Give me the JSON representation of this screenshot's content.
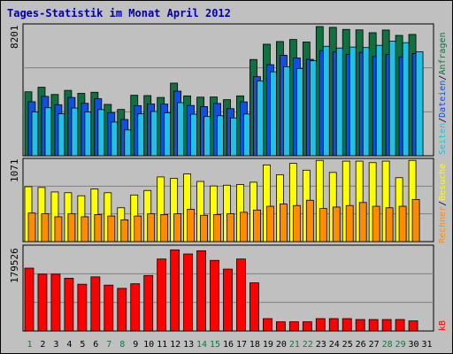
{
  "title": "Tages-Statistik im Monat April 2012",
  "colors": {
    "title": "#0000aa",
    "anfragen": "#107040",
    "dateien": "#1050e0",
    "seiten": "#20c0e8",
    "besuche": "#ffff00",
    "rechner": "#ff8c00",
    "kb": "#ff0000",
    "weekend": "#008040",
    "weekday": "#000000"
  },
  "legend": {
    "anfragen": "Anfragen",
    "dateien": "Dateien",
    "seiten": "Seiten",
    "besuche": "Besuche",
    "rechner": "Rechner",
    "kb": "kB",
    "sep": "/"
  },
  "chart_data": [
    {
      "type": "bar",
      "panel": "requests",
      "ymax_label": "8201",
      "ylim": [
        0,
        8201
      ],
      "categories": [
        "1",
        "2",
        "3",
        "4",
        "5",
        "6",
        "7",
        "8",
        "9",
        "10",
        "11",
        "12",
        "13",
        "14",
        "15",
        "16",
        "17",
        "18",
        "19",
        "20",
        "21",
        "22",
        "23",
        "24",
        "25",
        "26",
        "27",
        "28",
        "29",
        "30",
        "31"
      ],
      "series": [
        {
          "name": "Anfragen",
          "values": [
            4060,
            4350,
            3890,
            4150,
            3960,
            4030,
            3260,
            2940,
            3840,
            3820,
            3700,
            4610,
            3800,
            3720,
            3730,
            3560,
            3800,
            6110,
            7080,
            7250,
            7380,
            7220,
            8200,
            8150,
            8020,
            7990,
            7810,
            7980,
            7640,
            7700,
            0
          ]
        },
        {
          "name": "Dateien",
          "values": [
            3430,
            3770,
            3240,
            3700,
            3330,
            3620,
            2740,
            2300,
            3180,
            3290,
            3280,
            4100,
            3190,
            3120,
            3320,
            2990,
            3420,
            5020,
            5780,
            6380,
            6210,
            6120,
            6670,
            6590,
            6440,
            6560,
            6300,
            6420,
            6280,
            6480,
            0
          ]
        },
        {
          "name": "Seiten",
          "values": [
            2790,
            3050,
            2660,
            3030,
            2780,
            2930,
            2140,
            1640,
            2660,
            2810,
            2720,
            3370,
            2640,
            2490,
            2540,
            2400,
            2650,
            4750,
            5330,
            5650,
            5540,
            6030,
            6950,
            6840,
            6900,
            6870,
            7010,
            7270,
            7180,
            6600,
            0
          ]
        }
      ]
    },
    {
      "type": "bar",
      "panel": "visits",
      "ymax_label": "1071",
      "ylim": [
        0,
        1071
      ],
      "categories": [
        "1",
        "2",
        "3",
        "4",
        "5",
        "6",
        "7",
        "8",
        "9",
        "10",
        "11",
        "12",
        "13",
        "14",
        "15",
        "16",
        "17",
        "18",
        "19",
        "20",
        "21",
        "22",
        "23",
        "24",
        "25",
        "26",
        "27",
        "28",
        "29",
        "30",
        "31"
      ],
      "series": [
        {
          "name": "Besuche",
          "values": [
            730,
            720,
            660,
            650,
            610,
            700,
            650,
            450,
            620,
            680,
            860,
            840,
            900,
            800,
            740,
            750,
            760,
            790,
            1020,
            890,
            1040,
            950,
            1080,
            920,
            1070,
            1070,
            1050,
            1070,
            850,
            1080,
            0
          ]
        },
        {
          "name": "Rechner",
          "values": [
            380,
            370,
            330,
            370,
            330,
            360,
            340,
            290,
            340,
            370,
            360,
            370,
            430,
            350,
            360,
            370,
            390,
            420,
            470,
            500,
            480,
            550,
            440,
            460,
            480,
            520,
            470,
            450,
            470,
            560,
            0
          ]
        }
      ]
    },
    {
      "type": "bar",
      "panel": "volume",
      "ymax_label": "179526",
      "ylim": [
        0,
        179526
      ],
      "categories": [
        "1",
        "2",
        "3",
        "4",
        "5",
        "6",
        "7",
        "8",
        "9",
        "10",
        "11",
        "12",
        "13",
        "14",
        "15",
        "16",
        "17",
        "18",
        "19",
        "20",
        "21",
        "22",
        "23",
        "24",
        "25",
        "26",
        "27",
        "28",
        "29",
        "30",
        "31"
      ],
      "series": [
        {
          "name": "kB",
          "values": [
            137000,
            124000,
            124000,
            115000,
            102000,
            118000,
            100000,
            93000,
            103000,
            121000,
            157000,
            177000,
            168000,
            175000,
            154000,
            135000,
            157000,
            105000,
            27000,
            20000,
            20000,
            20000,
            27000,
            27000,
            27000,
            25000,
            25000,
            25000,
            25000,
            22000,
            0
          ]
        }
      ]
    }
  ]
}
